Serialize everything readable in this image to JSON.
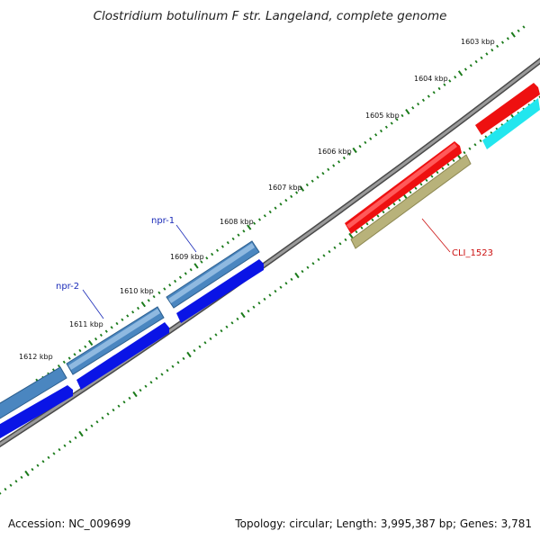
{
  "title": "Clostridium botulinum F str. Langeland, complete genome",
  "footer": {
    "accession": "Accession: NC_009699",
    "topology": "Topology: circular; Length: 3,995,387 bp; Genes: 3,781"
  },
  "ticks": [
    "1603 kbp",
    "1604 kbp",
    "1605 kbp",
    "1606 kbp",
    "1607 kbp",
    "1608 kbp",
    "1609 kbp",
    "1610 kbp",
    "1611 kbp",
    "1612 kbp"
  ],
  "gene_labels": {
    "npr1": "npr-1",
    "npr2": "npr-2",
    "cli": "CLI_1523"
  },
  "colors": {
    "label_blue": "#1a2bb8",
    "label_red": "#cc1111",
    "tick_green": "#1a7a1a",
    "backbone": "#808080",
    "steel_blue": "#4a86c0",
    "blue": "#0a14e6",
    "red": "#ee1010",
    "olive": "#b8b27a",
    "cyan": "#22e6ee"
  }
}
